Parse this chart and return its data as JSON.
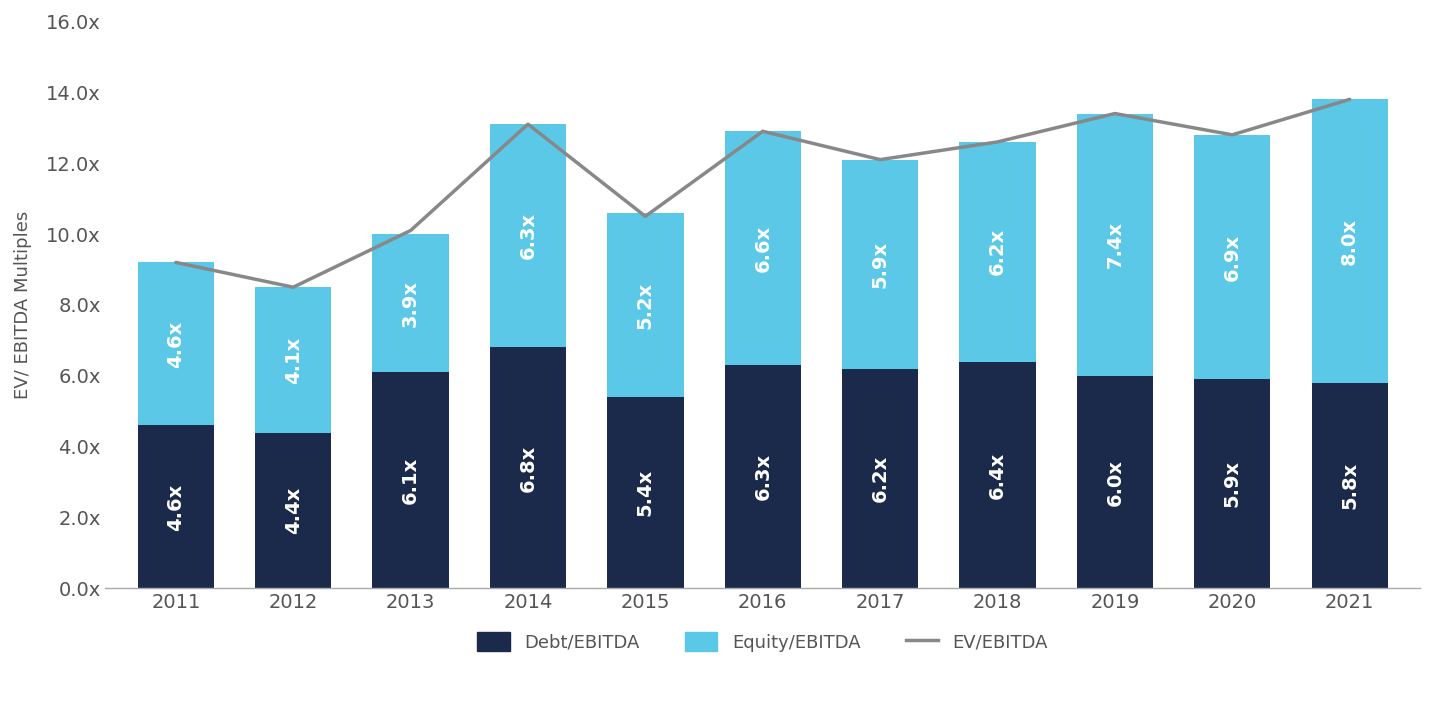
{
  "years": [
    "2011",
    "2012",
    "2013",
    "2014",
    "2015",
    "2016",
    "2017",
    "2018",
    "2019",
    "2020",
    "2021"
  ],
  "debt_values": [
    4.6,
    4.4,
    6.1,
    6.8,
    5.4,
    6.3,
    6.2,
    6.4,
    6.0,
    5.9,
    5.8
  ],
  "equity_values": [
    4.6,
    4.1,
    3.9,
    6.3,
    5.2,
    6.6,
    5.9,
    6.2,
    7.4,
    6.9,
    8.0
  ],
  "ev_values": [
    9.2,
    8.5,
    10.1,
    13.1,
    10.5,
    12.9,
    12.1,
    12.6,
    13.4,
    12.8,
    13.8
  ],
  "debt_labels": [
    "4.6x",
    "4.4x",
    "6.1x",
    "6.8x",
    "5.4x",
    "6.3x",
    "6.2x",
    "6.4x",
    "6.0x",
    "5.9x",
    "5.8x"
  ],
  "equity_labels": [
    "4.6x",
    "4.1x",
    "3.9x",
    "6.3x",
    "5.2x",
    "6.6x",
    "5.9x",
    "6.2x",
    "7.4x",
    "6.9x",
    "8.0x"
  ],
  "debt_color": "#1b2a4a",
  "equity_color": "#5bc8e8",
  "ev_line_color": "#888888",
  "ylabel": "EV/ EBITDA Multiples",
  "ylim": [
    0,
    16
  ],
  "yticks": [
    0,
    2,
    4,
    6,
    8,
    10,
    12,
    14,
    16
  ],
  "ytick_labels": [
    "0.0x",
    "2.0x",
    "4.0x",
    "6.0x",
    "8.0x",
    "10.0x",
    "12.0x",
    "14.0x",
    "16.0x"
  ],
  "legend_debt": "Debt/EBITDA",
  "legend_equity": "Equity/EBITDA",
  "legend_ev": "EV/EBITDA",
  "background_color": "#ffffff",
  "bar_width": 0.65,
  "label_fontsize": 14,
  "tick_fontsize": 14,
  "ylabel_fontsize": 13
}
